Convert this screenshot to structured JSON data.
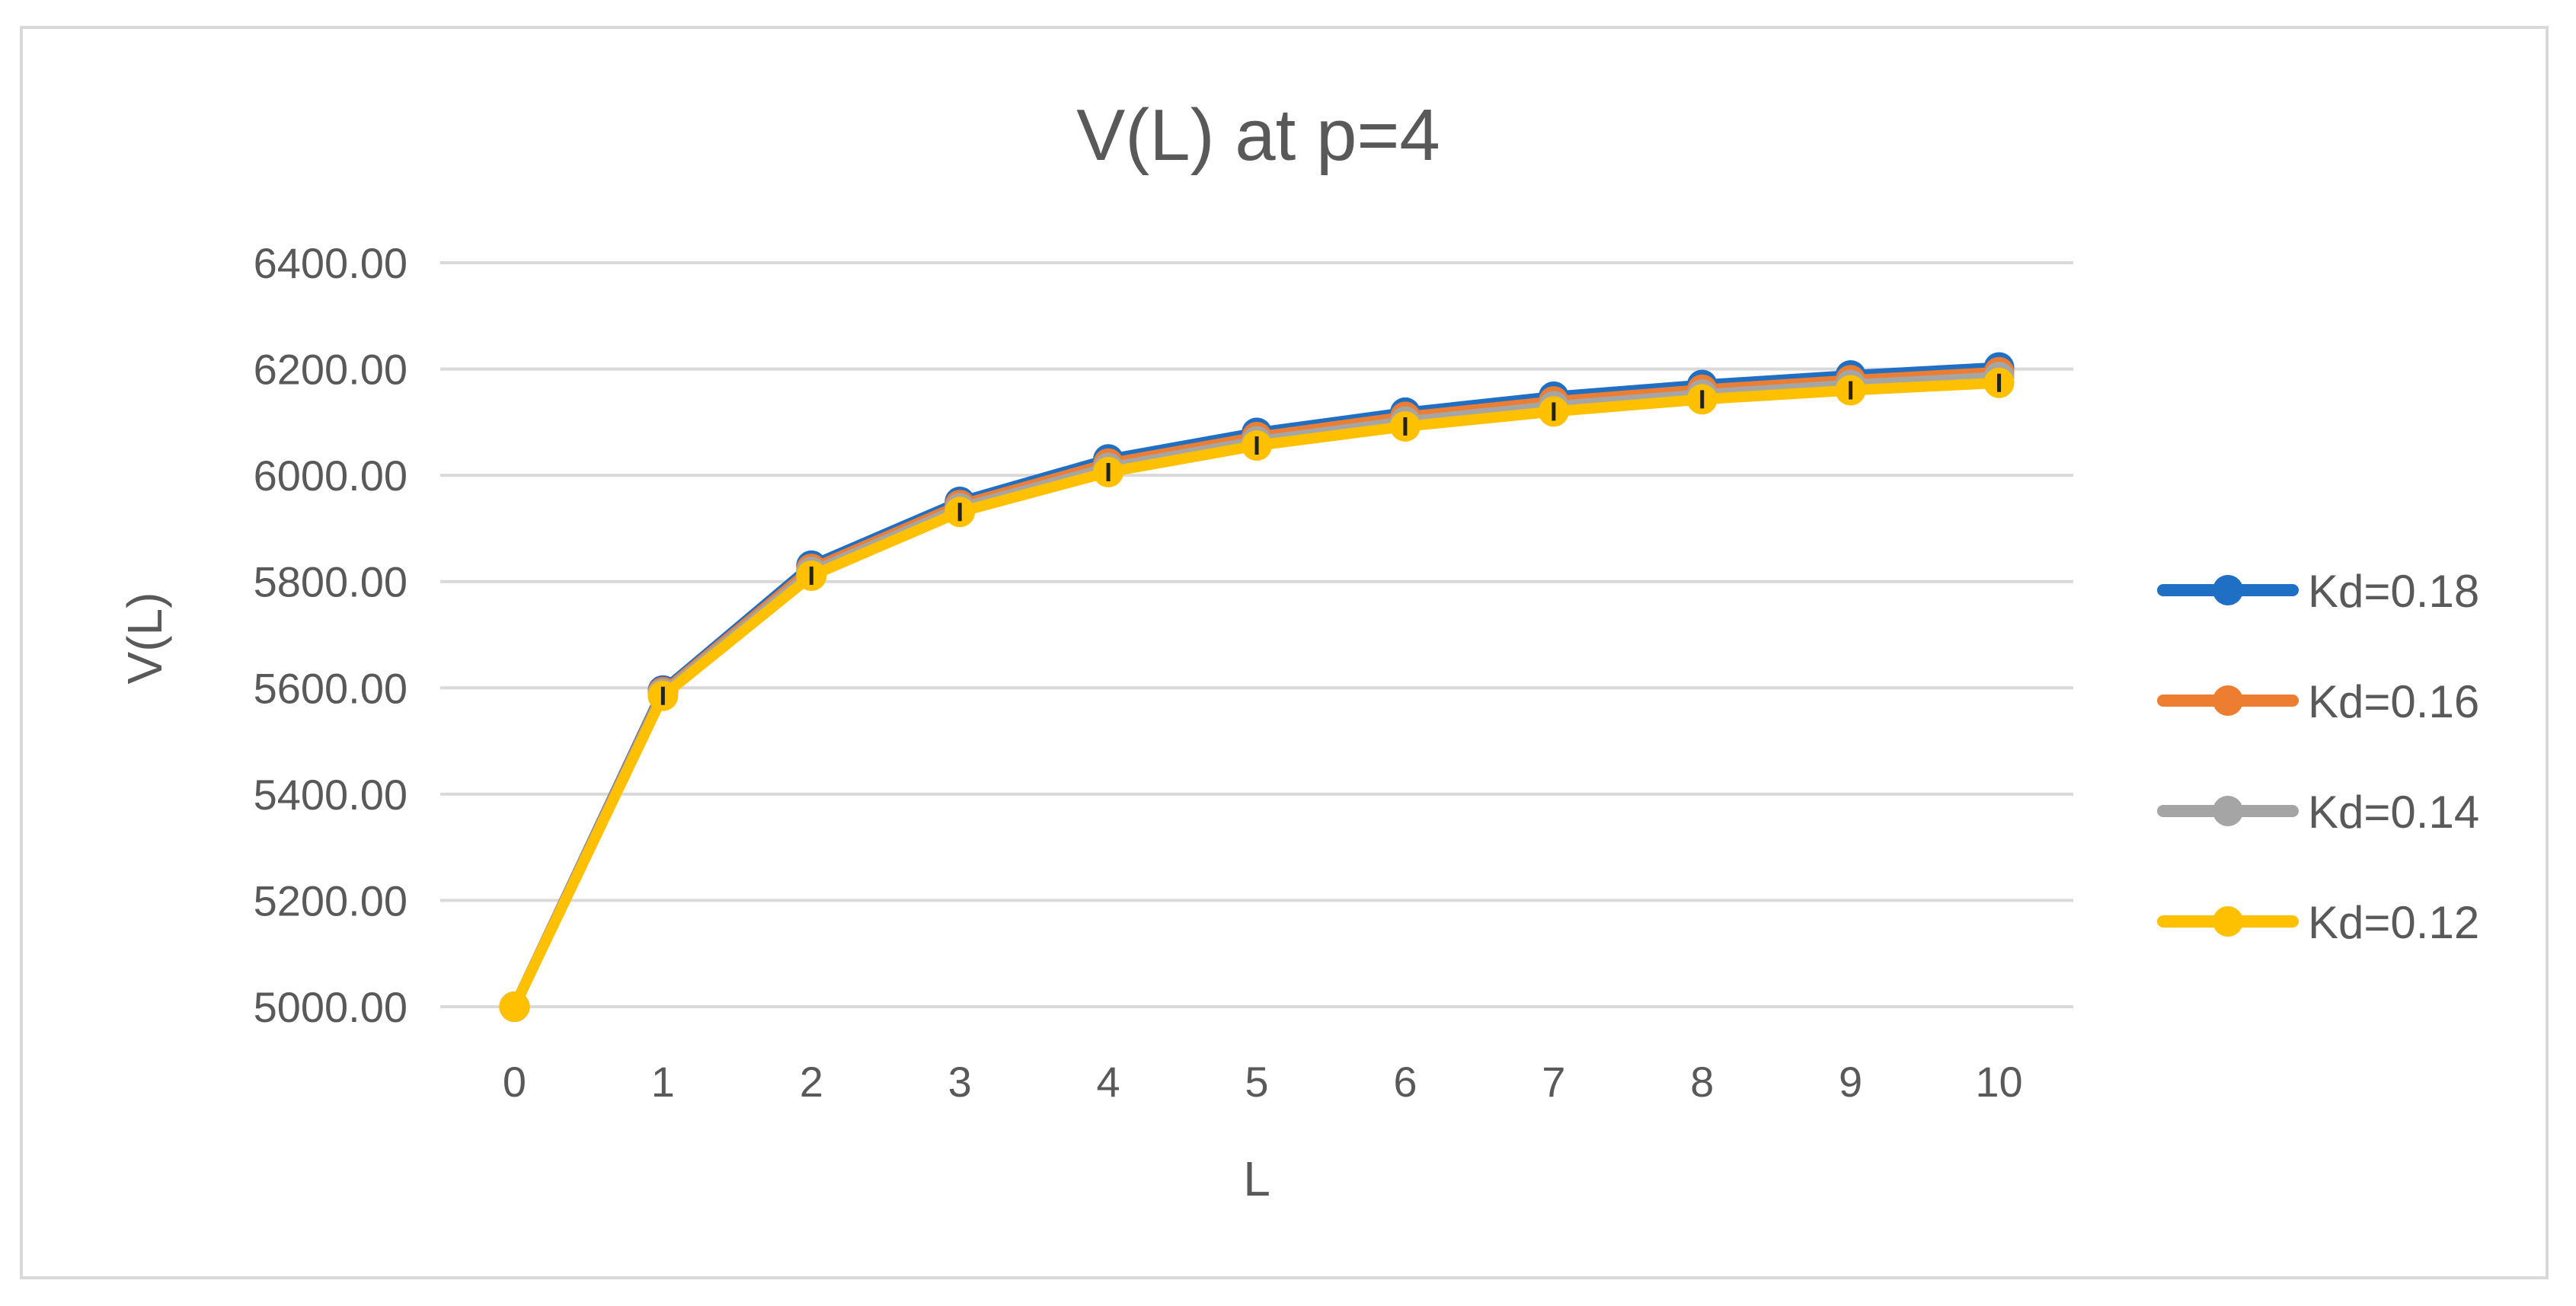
{
  "chart_data": {
    "type": "line",
    "title": "V(L) at p=4",
    "xlabel": "L",
    "ylabel": "V(L)",
    "x": [
      0,
      1,
      2,
      3,
      4,
      5,
      6,
      7,
      8,
      9,
      10
    ],
    "x_tick_labels": [
      "0",
      "1",
      "2",
      "3",
      "4",
      "5",
      "6",
      "7",
      "8",
      "9",
      "10"
    ],
    "ylim": [
      5000,
      6400
    ],
    "y_ticks": [
      5000,
      5200,
      5400,
      5600,
      5800,
      6000,
      6200,
      6400
    ],
    "y_tick_labels": [
      "5000.00",
      "5200.00",
      "5400.00",
      "5600.00",
      "5800.00",
      "6000.00",
      "6200.00",
      "6400.00"
    ],
    "grid": true,
    "legend_position": "right",
    "series": [
      {
        "name": "Kd=0.18",
        "color": "#1f6fc5",
        "values": [
          5000,
          5595,
          5830,
          5950,
          6030,
          6080,
          6118,
          6148,
          6170,
          6188,
          6203
        ]
      },
      {
        "name": "Kd=0.16",
        "color": "#ed7d31",
        "values": [
          5000,
          5592,
          5824,
          5944,
          6022,
          6072,
          6110,
          6139,
          6161,
          6179,
          6194
        ]
      },
      {
        "name": "Kd=0.14",
        "color": "#a5a5a5",
        "values": [
          5000,
          5589,
          5818,
          5938,
          6014,
          6064,
          6101,
          6130,
          6152,
          6170,
          6185
        ]
      },
      {
        "name": "Kd=0.12",
        "color": "#ffc000",
        "values": [
          5000,
          5585,
          5811,
          5931,
          6006,
          6056,
          6092,
          6120,
          6143,
          6160,
          6174
        ]
      }
    ]
  }
}
